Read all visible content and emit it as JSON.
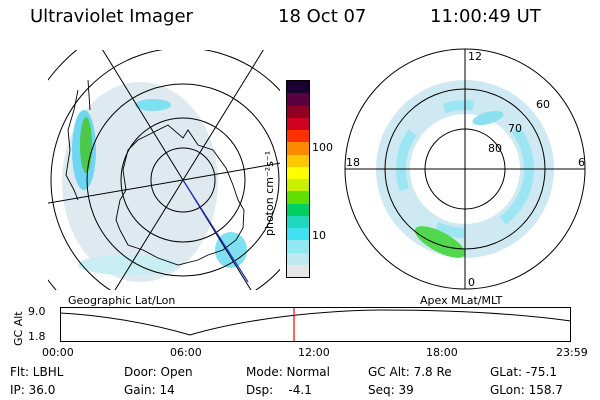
{
  "header": {
    "title": "Ultraviolet Imager",
    "date": "18 Oct 07",
    "time": "11:00:49 UT"
  },
  "geo_panel": {
    "label": "Geographic Lat/Lon"
  },
  "apex_panel": {
    "label": "Apex MLat/MLT",
    "mlt_labels": [
      "12",
      "18",
      "6",
      "0"
    ],
    "lat_labels": [
      "60",
      "70",
      "80"
    ]
  },
  "colorbar": {
    "unit_label": "photon cm⁻²s⁻¹",
    "ticks": [
      "100",
      "10"
    ],
    "colors": [
      "#1a0030",
      "#5a0040",
      "#900020",
      "#d00020",
      "#ff3000",
      "#ff8a00",
      "#ffc800",
      "#ffff00",
      "#c8f000",
      "#60e000",
      "#00d060",
      "#20d8c0",
      "#40e0f0",
      "#90e8f0",
      "#c0e8f0",
      "#e6e6e6"
    ]
  },
  "altitude_plot": {
    "ylabel": "GC Alt",
    "y_ticks": [
      "9.0",
      "1.8"
    ],
    "x_ticks": [
      "00:00",
      "06:00",
      "12:00",
      "18:00",
      "23:59"
    ],
    "current_time_marker": "11:00",
    "marker_color": "#ff0000"
  },
  "info": {
    "rows": [
      [
        "Flt: LBHL",
        "Door: Open",
        "Mode: Normal",
        "GC Alt: 7.8 Re",
        "GLat: -75.1"
      ],
      [
        "IP: 36.0",
        "Gain: 14",
        "Dsp:    -4.1",
        "Seq: 39",
        "GLon: 158.7"
      ]
    ]
  }
}
